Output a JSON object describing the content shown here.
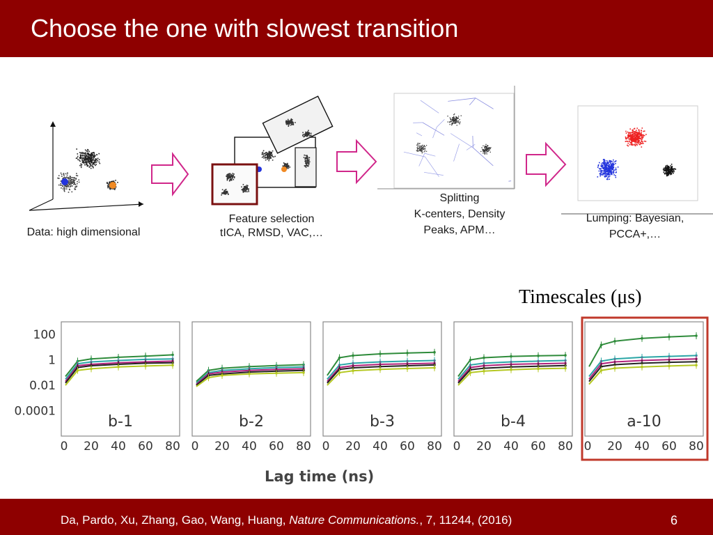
{
  "slide": {
    "title": "Choose the one with slowest transition",
    "slide_number": "6",
    "citation_authors": "Da, Pardo, Xu, Zhang, Gao, Wang, Huang, ",
    "citation_journal": "Nature Communications.",
    "citation_rest": ", 7, 11244, (2016)"
  },
  "pipeline": {
    "step1_caption": "Data: high dimensional",
    "step2_caption_1": "Feature selection",
    "step2_caption_2": "tICA, RMSD, VAC,…",
    "step3_caption_1": "Splitting",
    "step3_caption_2": "K-centers, Density",
    "step3_caption_3": "Peaks, APM…",
    "step4_caption_1": "Lumping: Bayesian,",
    "step4_caption_2": "PCCA+,…",
    "cluster_colors": {
      "blue": "#2233dd",
      "orange": "#f08a24",
      "red": "#ee2222",
      "black": "#111111"
    },
    "arrow_color": "#d0268a"
  },
  "plots": {
    "timescales_label": "Timescales (μs)",
    "xlabel": "Lag time (ns)",
    "highlight_color": "#c0392b",
    "ytick_labels": [
      "100",
      "1",
      "0.01",
      "0.0001"
    ],
    "xtick_labels": [
      "0",
      "20",
      "40",
      "60",
      "80"
    ]
  },
  "chart_data": [
    {
      "type": "line",
      "panel_label": "b-1",
      "yscale": "log",
      "xlim": [
        0,
        80
      ],
      "ylim": [
        1e-06,
        1000
      ],
      "x": [
        1,
        10,
        20,
        40,
        60,
        80
      ],
      "series": [
        {
          "color": "#2e8b3a",
          "values": [
            0.05,
            0.8,
            1.2,
            1.6,
            2.0,
            2.5
          ]
        },
        {
          "color": "#2aa6a6",
          "values": [
            0.03,
            0.5,
            0.7,
            0.9,
            1.1,
            1.2
          ]
        },
        {
          "color": "#b0207a",
          "values": [
            0.02,
            0.35,
            0.45,
            0.6,
            0.7,
            0.8
          ]
        },
        {
          "color": "#222222",
          "values": [
            0.015,
            0.25,
            0.35,
            0.45,
            0.55,
            0.6
          ]
        },
        {
          "color": "#b5c822",
          "values": [
            0.01,
            0.15,
            0.2,
            0.28,
            0.33,
            0.38
          ]
        }
      ]
    },
    {
      "type": "line",
      "panel_label": "b-2",
      "yscale": "log",
      "xlim": [
        0,
        80
      ],
      "ylim": [
        1e-06,
        1000
      ],
      "x": [
        1,
        10,
        20,
        40,
        60,
        80
      ],
      "series": [
        {
          "color": "#2e8b3a",
          "values": [
            0.02,
            0.15,
            0.22,
            0.3,
            0.36,
            0.42
          ]
        },
        {
          "color": "#2aa6a6",
          "values": [
            0.015,
            0.1,
            0.15,
            0.2,
            0.25,
            0.28
          ]
        },
        {
          "color": "#b0207a",
          "values": [
            0.012,
            0.08,
            0.11,
            0.15,
            0.18,
            0.2
          ]
        },
        {
          "color": "#222222",
          "values": [
            0.01,
            0.06,
            0.08,
            0.11,
            0.13,
            0.15
          ]
        },
        {
          "color": "#b5c822",
          "values": [
            0.008,
            0.04,
            0.06,
            0.08,
            0.09,
            0.1
          ]
        }
      ]
    },
    {
      "type": "line",
      "panel_label": "b-3",
      "yscale": "log",
      "xlim": [
        0,
        80
      ],
      "ylim": [
        1e-06,
        1000
      ],
      "x": [
        1,
        10,
        20,
        40,
        60,
        80
      ],
      "series": [
        {
          "color": "#2e8b3a",
          "values": [
            0.06,
            1.5,
            2.2,
            3.0,
            3.5,
            4.0
          ]
        },
        {
          "color": "#2aa6a6",
          "values": [
            0.03,
            0.4,
            0.55,
            0.7,
            0.8,
            0.9
          ]
        },
        {
          "color": "#b0207a",
          "values": [
            0.02,
            0.25,
            0.35,
            0.45,
            0.5,
            0.55
          ]
        },
        {
          "color": "#222222",
          "values": [
            0.015,
            0.18,
            0.24,
            0.3,
            0.35,
            0.4
          ]
        },
        {
          "color": "#b5c822",
          "values": [
            0.01,
            0.1,
            0.14,
            0.18,
            0.21,
            0.24
          ]
        }
      ]
    },
    {
      "type": "line",
      "panel_label": "b-4",
      "yscale": "log",
      "xlim": [
        0,
        80
      ],
      "ylim": [
        1e-06,
        1000
      ],
      "x": [
        1,
        10,
        20,
        40,
        60,
        80
      ],
      "series": [
        {
          "color": "#2e8b3a",
          "values": [
            0.05,
            1.0,
            1.5,
            1.9,
            2.1,
            2.3
          ]
        },
        {
          "color": "#2aa6a6",
          "values": [
            0.03,
            0.4,
            0.55,
            0.7,
            0.8,
            0.9
          ]
        },
        {
          "color": "#b0207a",
          "values": [
            0.02,
            0.25,
            0.35,
            0.45,
            0.5,
            0.55
          ]
        },
        {
          "color": "#222222",
          "values": [
            0.015,
            0.17,
            0.22,
            0.28,
            0.32,
            0.36
          ]
        },
        {
          "color": "#b5c822",
          "values": [
            0.01,
            0.1,
            0.13,
            0.17,
            0.2,
            0.22
          ]
        }
      ]
    },
    {
      "type": "line",
      "panel_label": "a-10",
      "yscale": "log",
      "xlim": [
        0,
        80
      ],
      "ylim": [
        1e-06,
        1000
      ],
      "x": [
        1,
        10,
        20,
        40,
        60,
        80
      ],
      "series": [
        {
          "color": "#2e8b3a",
          "values": [
            0.3,
            15,
            30,
            50,
            65,
            80
          ]
        },
        {
          "color": "#2aa6a6",
          "values": [
            0.05,
            0.8,
            1.2,
            1.6,
            1.9,
            2.2
          ]
        },
        {
          "color": "#b0207a",
          "values": [
            0.03,
            0.5,
            0.7,
            0.9,
            1.05,
            1.2
          ]
        },
        {
          "color": "#222222",
          "values": [
            0.02,
            0.3,
            0.42,
            0.55,
            0.65,
            0.72
          ]
        },
        {
          "color": "#b5c822",
          "values": [
            0.012,
            0.15,
            0.22,
            0.28,
            0.33,
            0.38
          ]
        }
      ]
    }
  ]
}
